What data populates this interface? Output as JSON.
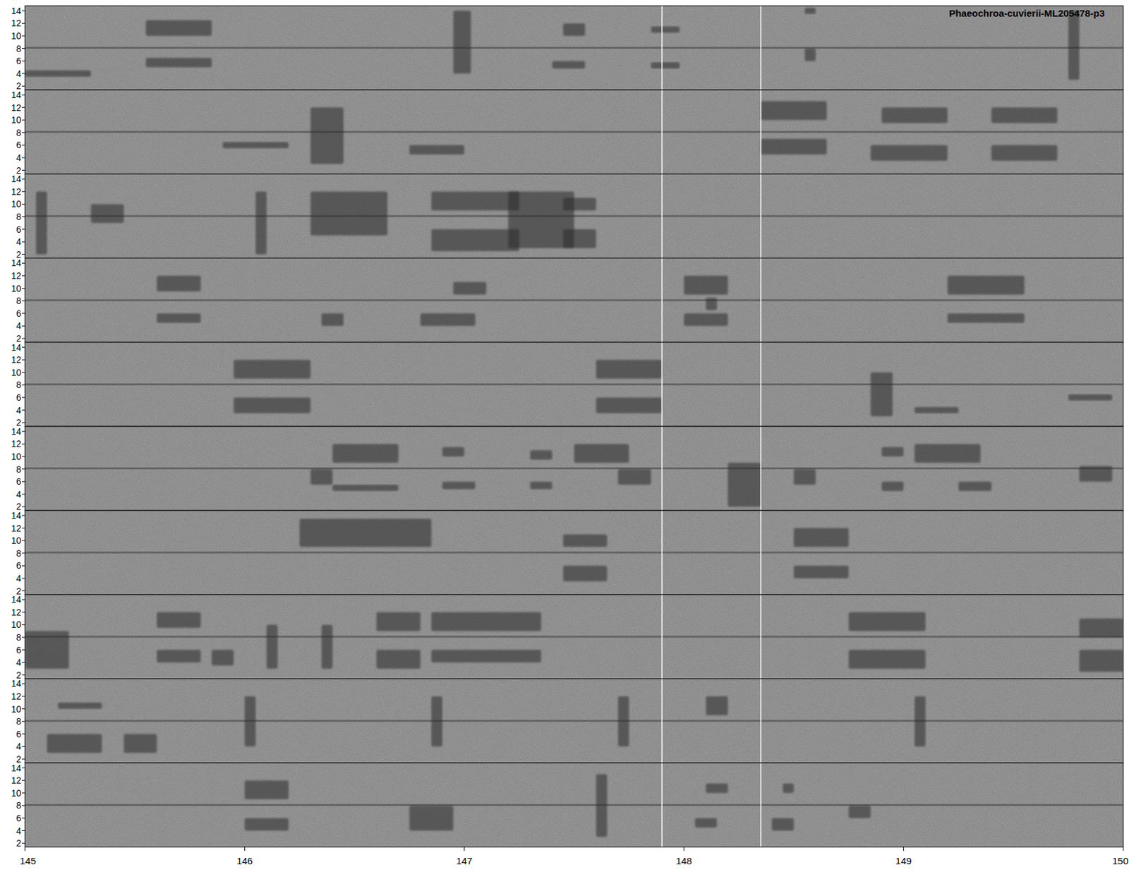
{
  "chart_data": {
    "type": "spectrogram",
    "title": "Phaeochroa-cuvierii-ML205478-p3",
    "xlim": [
      145,
      150
    ],
    "xticks": [
      145,
      146,
      147,
      148,
      149,
      150
    ],
    "ylim": [
      1.4,
      14.8
    ],
    "yticks": [
      2,
      4,
      6,
      8,
      10,
      12,
      14
    ],
    "noise_band_khz": 8.1,
    "highlight_times": [
      147.9,
      148.35
    ],
    "panels": [
      {
        "notes": [
          {
            "t": [
              145.0,
              145.3
            ],
            "f": [
              3.5,
              4.5
            ]
          },
          {
            "t": [
              145.55,
              145.85
            ],
            "f": [
              10,
              12.5
            ]
          },
          {
            "t": [
              145.55,
              145.85
            ],
            "f": [
              5,
              6.5
            ]
          },
          {
            "t": [
              146.95,
              147.03
            ],
            "f": [
              4,
              14
            ]
          },
          {
            "t": [
              147.4,
              147.55
            ],
            "f": [
              4.8,
              6
            ]
          },
          {
            "t": [
              147.45,
              147.55
            ],
            "f": [
              10,
              12
            ]
          },
          {
            "t": [
              147.85,
              147.98
            ],
            "f": [
              4.8,
              5.8
            ]
          },
          {
            "t": [
              147.85,
              147.98
            ],
            "f": [
              10.5,
              11.5
            ]
          },
          {
            "t": [
              148.55,
              148.6
            ],
            "f": [
              6,
              8
            ]
          },
          {
            "t": [
              148.55,
              148.6
            ],
            "f": [
              13.5,
              14.5
            ]
          },
          {
            "t": [
              149.75,
              149.8
            ],
            "f": [
              3,
              14
            ]
          }
        ]
      },
      {
        "notes": [
          {
            "t": [
              145.9,
              146.2
            ],
            "f": [
              5.5,
              6.5
            ]
          },
          {
            "t": [
              146.3,
              146.45
            ],
            "f": [
              3,
              12
            ]
          },
          {
            "t": [
              146.75,
              147.0
            ],
            "f": [
              4.5,
              6
            ]
          },
          {
            "t": [
              148.35,
              148.65
            ],
            "f": [
              4.5,
              7
            ]
          },
          {
            "t": [
              148.35,
              148.65
            ],
            "f": [
              10,
              13
            ]
          },
          {
            "t": [
              148.85,
              149.2
            ],
            "f": [
              3.5,
              6
            ]
          },
          {
            "t": [
              148.9,
              149.2
            ],
            "f": [
              9.5,
              12
            ]
          },
          {
            "t": [
              149.4,
              149.7
            ],
            "f": [
              3.5,
              6
            ]
          },
          {
            "t": [
              149.4,
              149.7
            ],
            "f": [
              9.5,
              12
            ]
          }
        ]
      },
      {
        "notes": [
          {
            "t": [
              145.05,
              145.1
            ],
            "f": [
              2,
              12
            ]
          },
          {
            "t": [
              145.3,
              145.45
            ],
            "f": [
              7,
              10
            ]
          },
          {
            "t": [
              146.05,
              146.1
            ],
            "f": [
              2,
              12
            ]
          },
          {
            "t": [
              146.3,
              146.65
            ],
            "f": [
              5,
              12
            ]
          },
          {
            "t": [
              146.85,
              147.25
            ],
            "f": [
              2.5,
              6
            ]
          },
          {
            "t": [
              146.85,
              147.25
            ],
            "f": [
              9,
              12
            ]
          },
          {
            "t": [
              147.2,
              147.5
            ],
            "f": [
              3,
              12
            ]
          },
          {
            "t": [
              147.45,
              147.6
            ],
            "f": [
              3,
              6
            ]
          },
          {
            "t": [
              147.45,
              147.6
            ],
            "f": [
              9,
              11
            ]
          }
        ]
      },
      {
        "notes": [
          {
            "t": [
              145.6,
              145.8
            ],
            "f": [
              9.5,
              12
            ]
          },
          {
            "t": [
              145.6,
              145.8
            ],
            "f": [
              4.5,
              6
            ]
          },
          {
            "t": [
              146.35,
              146.45
            ],
            "f": [
              4,
              6
            ]
          },
          {
            "t": [
              146.8,
              147.05
            ],
            "f": [
              4,
              6
            ]
          },
          {
            "t": [
              146.95,
              147.1
            ],
            "f": [
              9,
              11
            ]
          },
          {
            "t": [
              148.0,
              148.2
            ],
            "f": [
              4,
              6
            ]
          },
          {
            "t": [
              148.0,
              148.2
            ],
            "f": [
              9,
              12
            ]
          },
          {
            "t": [
              148.1,
              148.15
            ],
            "f": [
              6.5,
              8.5
            ]
          },
          {
            "t": [
              149.2,
              149.55
            ],
            "f": [
              4.5,
              6
            ]
          },
          {
            "t": [
              149.2,
              149.55
            ],
            "f": [
              9,
              12
            ]
          }
        ]
      },
      {
        "notes": [
          {
            "t": [
              145.95,
              146.3
            ],
            "f": [
              3.5,
              6
            ]
          },
          {
            "t": [
              145.95,
              146.3
            ],
            "f": [
              9,
              12
            ]
          },
          {
            "t": [
              147.6,
              147.9
            ],
            "f": [
              3.5,
              6
            ]
          },
          {
            "t": [
              147.6,
              147.9
            ],
            "f": [
              9,
              12
            ]
          },
          {
            "t": [
              148.85,
              148.95
            ],
            "f": [
              3,
              10
            ]
          },
          {
            "t": [
              149.05,
              149.25
            ],
            "f": [
              3.5,
              4.5
            ]
          },
          {
            "t": [
              149.75,
              149.95
            ],
            "f": [
              5.5,
              6.5
            ]
          }
        ]
      },
      {
        "notes": [
          {
            "t": [
              146.3,
              146.4
            ],
            "f": [
              5.5,
              8
            ]
          },
          {
            "t": [
              146.4,
              146.7
            ],
            "f": [
              9,
              12
            ]
          },
          {
            "t": [
              146.4,
              146.7
            ],
            "f": [
              4.5,
              5.5
            ]
          },
          {
            "t": [
              146.9,
              147.05
            ],
            "f": [
              4.8,
              6
            ]
          },
          {
            "t": [
              146.9,
              147.0
            ],
            "f": [
              10,
              11.5
            ]
          },
          {
            "t": [
              147.3,
              147.4
            ],
            "f": [
              4.8,
              6
            ]
          },
          {
            "t": [
              147.3,
              147.4
            ],
            "f": [
              9.5,
              11
            ]
          },
          {
            "t": [
              147.5,
              147.75
            ],
            "f": [
              9,
              12
            ]
          },
          {
            "t": [
              147.7,
              147.85
            ],
            "f": [
              5.5,
              8
            ]
          },
          {
            "t": [
              148.2,
              148.35
            ],
            "f": [
              2,
              9
            ]
          },
          {
            "t": [
              148.5,
              148.6
            ],
            "f": [
              5.5,
              8
            ]
          },
          {
            "t": [
              148.9,
              149.0
            ],
            "f": [
              4.5,
              6
            ]
          },
          {
            "t": [
              148.9,
              149.0
            ],
            "f": [
              10,
              11.5
            ]
          },
          {
            "t": [
              149.05,
              149.35
            ],
            "f": [
              9,
              12
            ]
          },
          {
            "t": [
              149.25,
              149.4
            ],
            "f": [
              4.5,
              6
            ]
          },
          {
            "t": [
              149.8,
              149.95
            ],
            "f": [
              6,
              8.5
            ]
          }
        ]
      },
      {
        "notes": [
          {
            "t": [
              146.25,
              146.85
            ],
            "f": [
              9,
              13.5
            ]
          },
          {
            "t": [
              147.45,
              147.65
            ],
            "f": [
              9,
              11
            ]
          },
          {
            "t": [
              147.45,
              147.65
            ],
            "f": [
              3.5,
              6
            ]
          },
          {
            "t": [
              148.5,
              148.75
            ],
            "f": [
              9,
              12
            ]
          },
          {
            "t": [
              148.5,
              148.75
            ],
            "f": [
              4,
              6
            ]
          }
        ]
      },
      {
        "notes": [
          {
            "t": [
              145.0,
              145.2
            ],
            "f": [
              3,
              9
            ]
          },
          {
            "t": [
              145.6,
              145.8
            ],
            "f": [
              9.5,
              12
            ]
          },
          {
            "t": [
              145.6,
              145.8
            ],
            "f": [
              4,
              6
            ]
          },
          {
            "t": [
              145.85,
              145.95
            ],
            "f": [
              3.5,
              6
            ]
          },
          {
            "t": [
              146.1,
              146.15
            ],
            "f": [
              3,
              10
            ]
          },
          {
            "t": [
              146.35,
              146.4
            ],
            "f": [
              3,
              10
            ]
          },
          {
            "t": [
              146.6,
              146.8
            ],
            "f": [
              3,
              6
            ]
          },
          {
            "t": [
              146.6,
              146.8
            ],
            "f": [
              9,
              12
            ]
          },
          {
            "t": [
              146.85,
              147.35
            ],
            "f": [
              9,
              12
            ]
          },
          {
            "t": [
              146.85,
              147.35
            ],
            "f": [
              4,
              6
            ]
          },
          {
            "t": [
              148.75,
              149.1
            ],
            "f": [
              3,
              6
            ]
          },
          {
            "t": [
              148.75,
              149.1
            ],
            "f": [
              9,
              12
            ]
          },
          {
            "t": [
              149.8,
              150.0
            ],
            "f": [
              2.5,
              6
            ]
          },
          {
            "t": [
              149.8,
              150.0
            ],
            "f": [
              8,
              11
            ]
          }
        ]
      },
      {
        "notes": [
          {
            "t": [
              145.1,
              145.35
            ],
            "f": [
              3,
              6
            ]
          },
          {
            "t": [
              145.15,
              145.35
            ],
            "f": [
              10,
              11
            ]
          },
          {
            "t": [
              145.45,
              145.6
            ],
            "f": [
              3,
              6
            ]
          },
          {
            "t": [
              146.0,
              146.05
            ],
            "f": [
              4,
              12
            ]
          },
          {
            "t": [
              146.85,
              146.9
            ],
            "f": [
              4,
              12
            ]
          },
          {
            "t": [
              147.7,
              147.75
            ],
            "f": [
              4,
              12
            ]
          },
          {
            "t": [
              148.1,
              148.2
            ],
            "f": [
              9,
              12
            ]
          },
          {
            "t": [
              149.05,
              149.1
            ],
            "f": [
              4,
              12
            ]
          }
        ]
      },
      {
        "notes": [
          {
            "t": [
              146.0,
              146.2
            ],
            "f": [
              9,
              12
            ]
          },
          {
            "t": [
              146.0,
              146.2
            ],
            "f": [
              4,
              6
            ]
          },
          {
            "t": [
              146.75,
              146.95
            ],
            "f": [
              4,
              8
            ]
          },
          {
            "t": [
              147.6,
              147.65
            ],
            "f": [
              3,
              13
            ]
          },
          {
            "t": [
              148.05,
              148.15
            ],
            "f": [
              4.5,
              6
            ]
          },
          {
            "t": [
              148.1,
              148.2
            ],
            "f": [
              10,
              11.5
            ]
          },
          {
            "t": [
              148.4,
              148.5
            ],
            "f": [
              4,
              6
            ]
          },
          {
            "t": [
              148.45,
              148.5
            ],
            "f": [
              10,
              11.5
            ]
          },
          {
            "t": [
              148.75,
              148.85
            ],
            "f": [
              6,
              8
            ]
          }
        ]
      }
    ]
  }
}
